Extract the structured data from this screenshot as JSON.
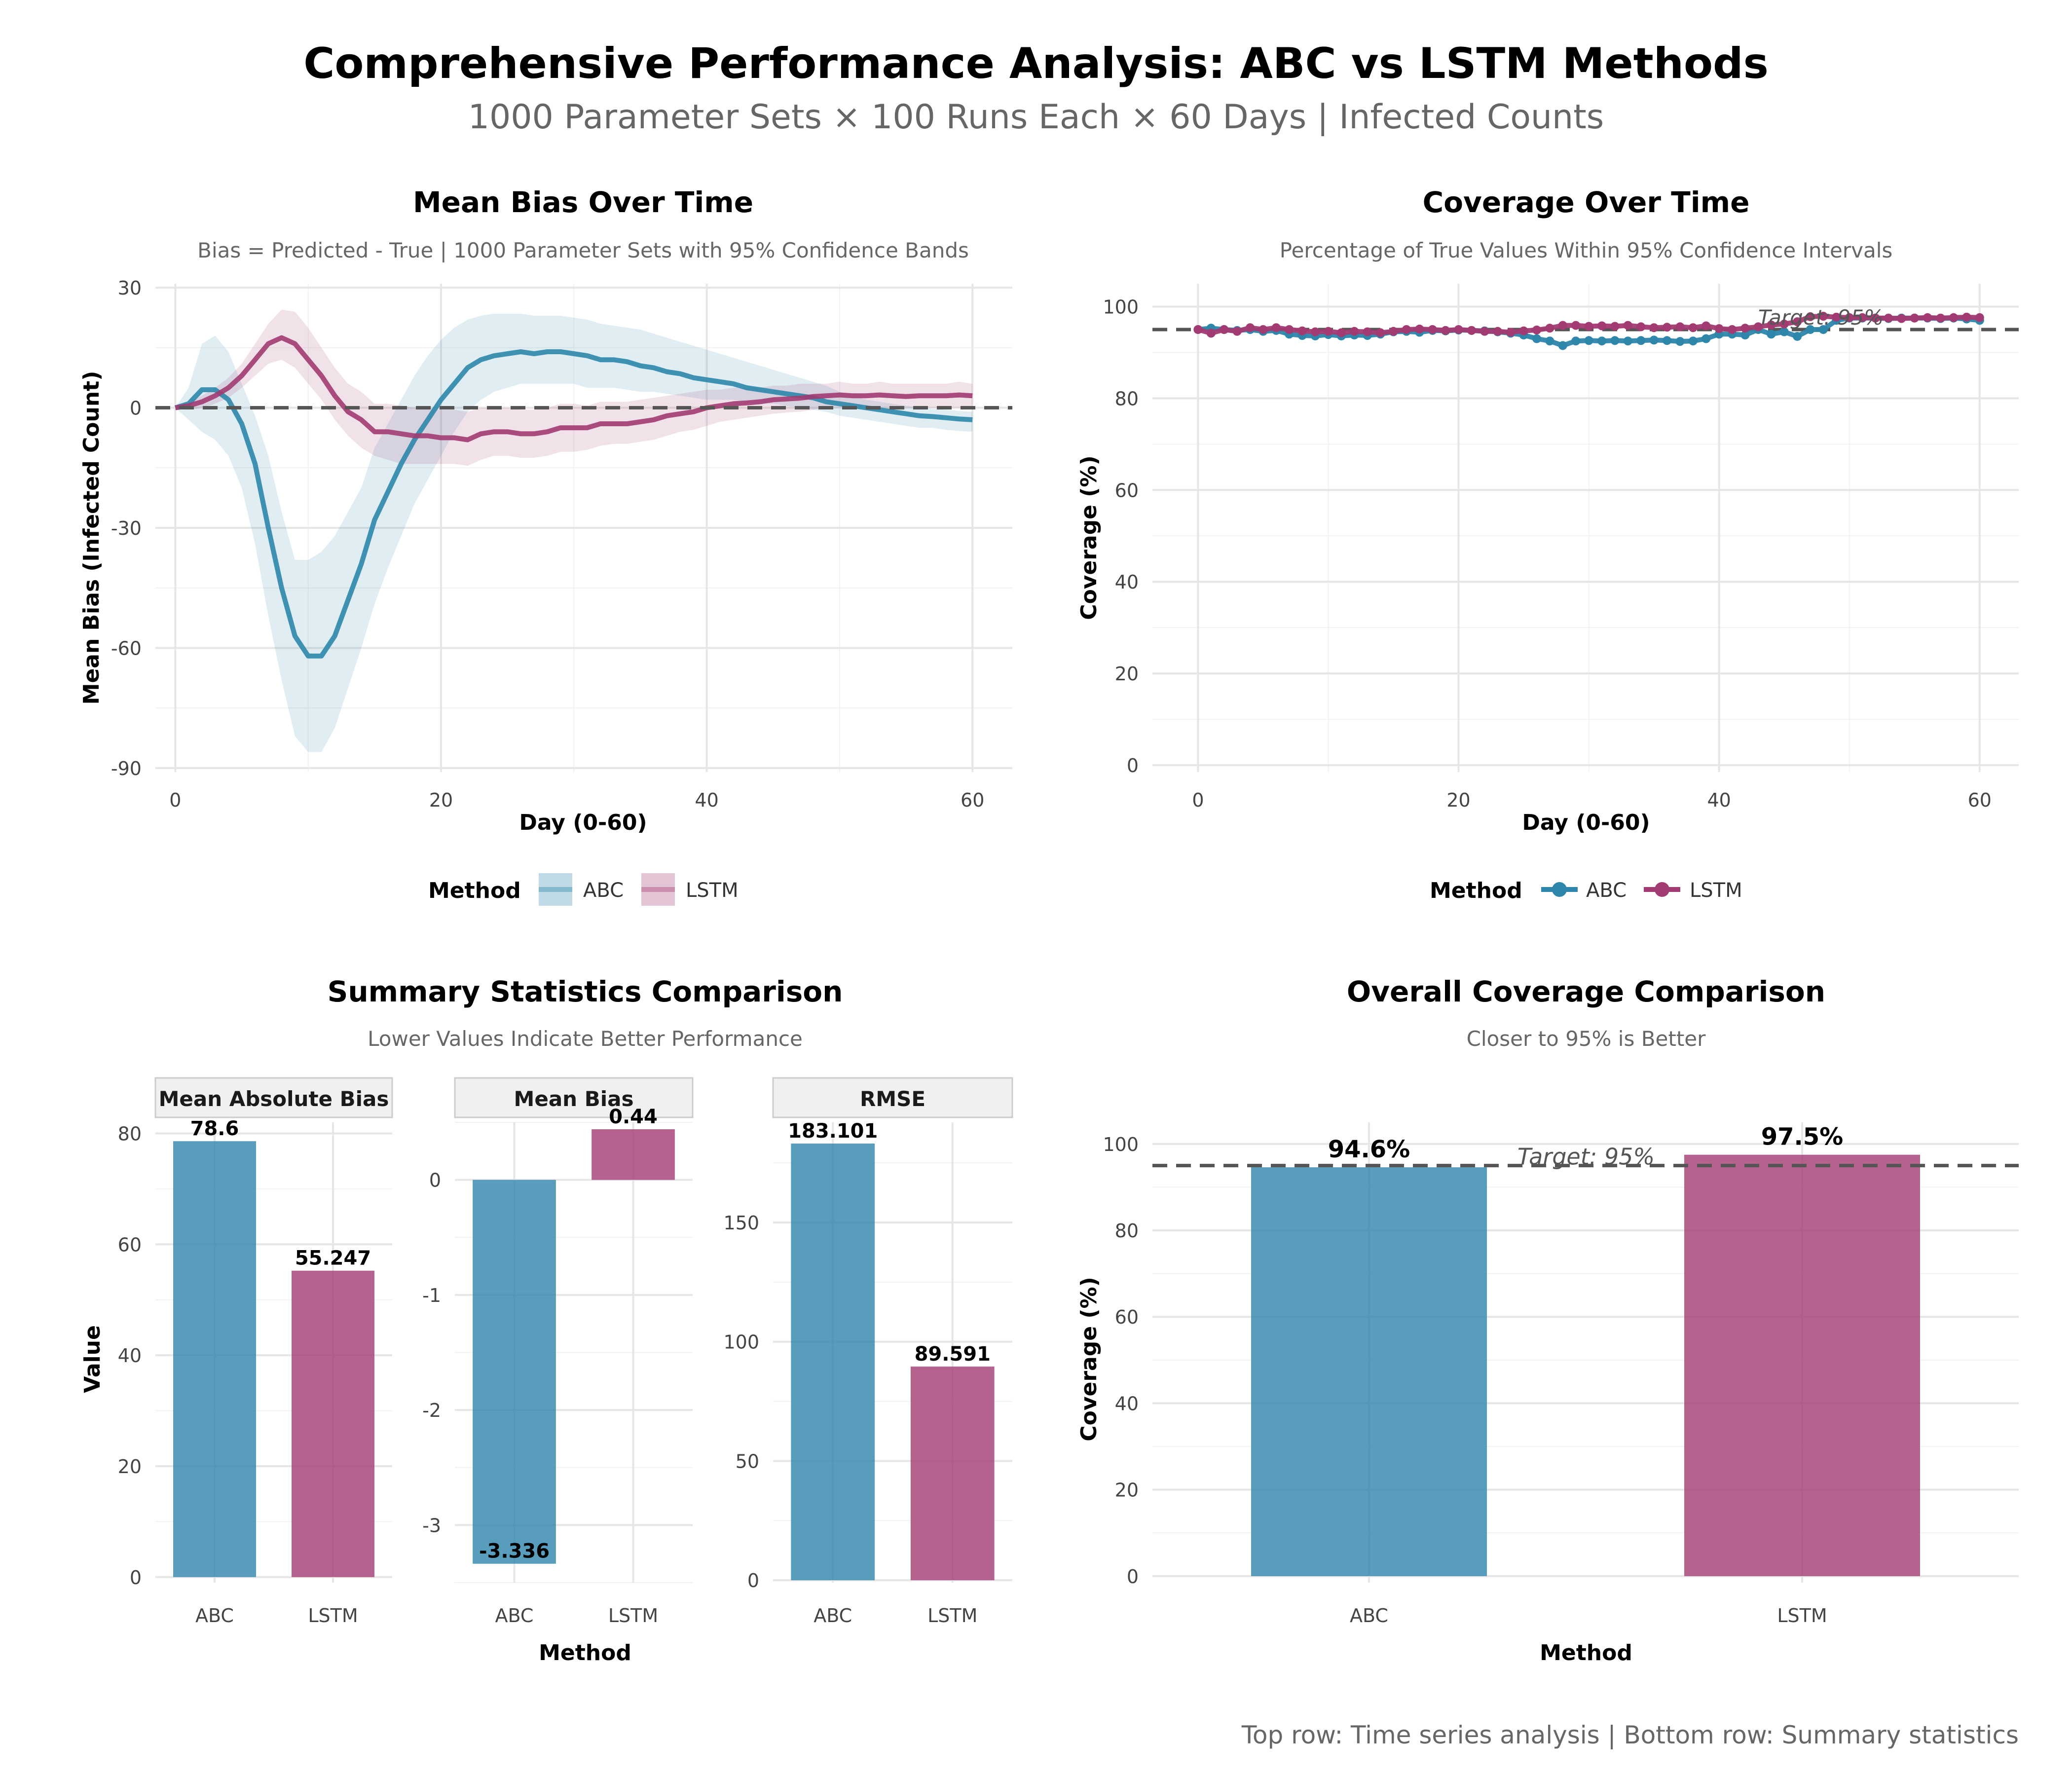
{
  "figure": {
    "title": "Comprehensive Performance Analysis: ABC vs LSTM Methods",
    "subtitle": "1000 Parameter Sets × 100 Runs Each × 60 Days | Infected Counts",
    "caption": "Top row: Time series analysis | Bottom row: Summary statistics"
  },
  "colors": {
    "abc": "#2E86AB",
    "lstm": "#A23B72",
    "reference": "#555555",
    "grid": "#e6e6e6",
    "strip": "#f0f0f0"
  },
  "chart_data": [
    {
      "id": "bias",
      "type": "line",
      "title": "Mean Bias Over Time",
      "subtitle": "Bias = Predicted - True | 1000 Parameter Sets with 95% Confidence Bands",
      "xlabel": "Day (0-60)",
      "ylabel": "Mean Bias (Infected Count)",
      "xlim": [
        -1.5,
        63
      ],
      "ylim": [
        -91,
        31
      ],
      "xticks": [
        0,
        20,
        40,
        60
      ],
      "yticks": [
        -90,
        -60,
        -30,
        0,
        30
      ],
      "xtick_labels": [
        "0",
        "20",
        "40",
        "60"
      ],
      "ytick_labels": [
        "-90",
        "-60",
        "-30",
        "0",
        "30"
      ],
      "reference_line": 0,
      "legend": {
        "title": "Method",
        "position": "bottom",
        "labels": [
          "ABC",
          "LSTM"
        ]
      },
      "x": [
        0,
        1,
        2,
        3,
        4,
        5,
        6,
        7,
        8,
        9,
        10,
        11,
        12,
        13,
        14,
        15,
        16,
        17,
        18,
        19,
        20,
        21,
        22,
        23,
        24,
        25,
        26,
        27,
        28,
        29,
        30,
        31,
        32,
        33,
        34,
        35,
        36,
        37,
        38,
        39,
        40,
        41,
        42,
        43,
        44,
        45,
        46,
        47,
        48,
        49,
        50,
        51,
        52,
        53,
        54,
        55,
        56,
        57,
        58,
        59,
        60
      ],
      "series": [
        {
          "name": "ABC",
          "values": [
            0,
            1,
            4.5,
            4.5,
            2,
            -4,
            -14,
            -30,
            -45,
            -57,
            -62,
            -62,
            -57,
            -48,
            -39,
            -28,
            -21,
            -14,
            -8,
            -3,
            2,
            6,
            10,
            12,
            13,
            13.5,
            14,
            13.5,
            14,
            14,
            13.5,
            13,
            12,
            12,
            11.5,
            10.5,
            10,
            9,
            8.5,
            7.5,
            7,
            6.5,
            6,
            5,
            4.5,
            4,
            3.5,
            3,
            2.5,
            1.5,
            1,
            0.5,
            0,
            -0.5,
            -1,
            -1.5,
            -2,
            -2.2,
            -2.5,
            -2.8,
            -3
          ],
          "lower": [
            0,
            -3,
            -6,
            -8,
            -12,
            -20,
            -34,
            -52,
            -68,
            -82,
            -86,
            -86,
            -80,
            -70,
            -60,
            -49,
            -40,
            -32,
            -24,
            -18,
            -12,
            -6,
            -1,
            2,
            4,
            5,
            6,
            6,
            6,
            6,
            6,
            5,
            5,
            5,
            4.5,
            4,
            4,
            3.5,
            3,
            2.5,
            2,
            2,
            2,
            1.5,
            1,
            1,
            0.5,
            0,
            -0.5,
            -1,
            -2,
            -2.5,
            -3,
            -3.5,
            -4,
            -4.5,
            -5,
            -5,
            -5.5,
            -5.8,
            -6
          ],
          "upper": [
            0,
            5,
            16,
            18,
            14,
            6,
            -2,
            -12,
            -26,
            -38,
            -38,
            -36,
            -32,
            -26,
            -20,
            -10,
            -4,
            2,
            8,
            13,
            17,
            20,
            22,
            23,
            23.5,
            23.5,
            23.5,
            23,
            23,
            23,
            22.5,
            22,
            21,
            20.5,
            20,
            19.5,
            18.5,
            17.5,
            16.5,
            15.5,
            14.5,
            13.5,
            12.5,
            11.5,
            10.5,
            9.5,
            8.5,
            7.5,
            6.5,
            5.5,
            4,
            3,
            2,
            1.5,
            1,
            0.5,
            0,
            -0.3,
            -0.5,
            -0.8,
            -1
          ]
        },
        {
          "name": "LSTM",
          "values": [
            0,
            0.5,
            1.5,
            3,
            5,
            8,
            12,
            16,
            17.5,
            16,
            12,
            8,
            3,
            -1,
            -3,
            -6,
            -6,
            -6.5,
            -7,
            -7,
            -7.5,
            -7.5,
            -8,
            -6.5,
            -6,
            -6,
            -6.5,
            -6.5,
            -6,
            -5,
            -5,
            -5,
            -4,
            -4,
            -4,
            -3.5,
            -3,
            -2,
            -1.5,
            -1,
            0,
            0.5,
            1,
            1.2,
            1.5,
            2,
            2.2,
            2.4,
            2.8,
            3,
            3.2,
            3,
            3,
            3.2,
            3,
            2.8,
            3,
            3,
            3,
            3.2,
            3
          ],
          "lower": [
            0,
            -0.5,
            0,
            1,
            2.5,
            5,
            8,
            11,
            12,
            10,
            6,
            2,
            -3,
            -7,
            -10,
            -12,
            -13,
            -14,
            -14,
            -14,
            -14,
            -14,
            -14.5,
            -13,
            -12,
            -12,
            -12.5,
            -12.5,
            -12,
            -11,
            -11,
            -10.5,
            -9.5,
            -9,
            -9,
            -8.5,
            -8,
            -7,
            -6,
            -5.5,
            -4.5,
            -3.5,
            -3,
            -2.5,
            -2,
            -1.5,
            -1.2,
            -1,
            -0.5,
            0,
            0,
            0,
            0,
            0,
            0,
            0,
            0,
            0,
            0,
            0,
            0
          ],
          "upper": [
            0,
            1.5,
            3,
            5,
            7.5,
            11,
            16,
            21,
            24.5,
            24,
            20,
            15,
            10,
            6,
            4,
            1,
            1,
            0.5,
            0,
            0,
            -0.5,
            -0.5,
            -1,
            0,
            0,
            0,
            -0.5,
            -0.5,
            0,
            1,
            1,
            0.5,
            1.5,
            1.5,
            1.5,
            2,
            2.5,
            3,
            3.5,
            4,
            4.5,
            4.5,
            5,
            5,
            5,
            5.5,
            5.5,
            6,
            6,
            6,
            6.5,
            6,
            6,
            6.5,
            6,
            6,
            6,
            6,
            6,
            6.5,
            6
          ]
        }
      ]
    },
    {
      "id": "coverage",
      "type": "line",
      "title": "Coverage Over Time",
      "subtitle": "Percentage of True Values Within 95% Confidence Intervals",
      "xlabel": "Day (0-60)",
      "ylabel": "Coverage (%)",
      "xlim": [
        -3.5,
        63
      ],
      "ylim": [
        -1.5,
        105
      ],
      "xticks": [
        0,
        20,
        40,
        60
      ],
      "yticks": [
        0,
        20,
        40,
        60,
        80,
        100
      ],
      "xtick_labels": [
        "0",
        "20",
        "40",
        "60"
      ],
      "ytick_labels": [
        "0",
        "20",
        "40",
        "60",
        "80",
        "100"
      ],
      "reference_line": 95,
      "reference_label": "Target: 95%",
      "legend": {
        "title": "Method",
        "position": "bottom",
        "labels": [
          "ABC",
          "LSTM"
        ]
      },
      "x": [
        0,
        1,
        2,
        3,
        4,
        5,
        6,
        7,
        8,
        9,
        10,
        11,
        12,
        13,
        14,
        15,
        16,
        17,
        18,
        19,
        20,
        21,
        22,
        23,
        24,
        25,
        26,
        27,
        28,
        29,
        30,
        31,
        32,
        33,
        34,
        35,
        36,
        37,
        38,
        39,
        40,
        41,
        42,
        43,
        44,
        45,
        46,
        47,
        48,
        49,
        50,
        51,
        52,
        53,
        54,
        55,
        56,
        57,
        58,
        59,
        60
      ],
      "series": [
        {
          "name": "ABC",
          "values": [
            95,
            95.3,
            95,
            94.8,
            95,
            94.6,
            94.8,
            94,
            93.7,
            93.6,
            93.9,
            93.6,
            93.8,
            93.7,
            94,
            94.5,
            94.6,
            94.4,
            94.8,
            94.7,
            94.9,
            94.8,
            94.7,
            94.5,
            94.2,
            93.8,
            93,
            92.5,
            91.5,
            92.5,
            92.6,
            92.5,
            92.6,
            92.5,
            92.6,
            92.7,
            92.6,
            92.4,
            92.5,
            93,
            94,
            94,
            93.8,
            95,
            94,
            94.5,
            93.5,
            95,
            95,
            97,
            97.5,
            97.5,
            97.5,
            97.4,
            97.5,
            97.5,
            97.5,
            97.4,
            97.5,
            97.3,
            97
          ]
        },
        {
          "name": "LSTM",
          "values": [
            95,
            94.2,
            95,
            94.6,
            95.4,
            95,
            95.4,
            95,
            94.7,
            94.5,
            94.6,
            94.3,
            94.6,
            94.5,
            94.3,
            94.6,
            95,
            95.1,
            95,
            94.8,
            95,
            94.8,
            94.6,
            94.6,
            94.4,
            94.7,
            94.9,
            95.3,
            95.9,
            95.9,
            95.7,
            95.8,
            95.7,
            95.9,
            95.6,
            95.4,
            95.5,
            95.6,
            95.4,
            95.8,
            95.2,
            95,
            95.3,
            95.6,
            96,
            96.2,
            96.7,
            97.8,
            97.9,
            97.7,
            97.6,
            97.6,
            97.5,
            97.5,
            97.4,
            97.5,
            97.6,
            97.5,
            97.6,
            97.7,
            97.6
          ]
        }
      ]
    },
    {
      "id": "summary",
      "type": "bar",
      "title": "Summary Statistics Comparison",
      "subtitle": "Lower Values Indicate Better Performance",
      "xlabel": "Method",
      "ylabel": "Value",
      "categories": [
        "ABC",
        "LSTM"
      ],
      "facets": [
        {
          "name": "Mean Absolute Bias",
          "values": [
            78.6,
            55.247
          ],
          "labels": [
            "78.6",
            "55.247"
          ],
          "ylim": [
            -1,
            82
          ],
          "yticks": [
            0,
            20,
            40,
            60,
            80
          ],
          "ytick_labels": [
            "0",
            "20",
            "40",
            "60",
            "80"
          ]
        },
        {
          "name": "Mean Bias",
          "values": [
            -3.336,
            0.44
          ],
          "labels": [
            "-3.336",
            "0.44"
          ],
          "ylim": [
            -3.5,
            0.5
          ],
          "yticks": [
            -3,
            -2,
            -1,
            0
          ],
          "ytick_labels": [
            "-3",
            "-2",
            "-1",
            "0"
          ]
        },
        {
          "name": "RMSE",
          "values": [
            183.101,
            89.591
          ],
          "labels": [
            "183.101",
            "89.591"
          ],
          "ylim": [
            -1,
            192
          ],
          "yticks": [
            0,
            50,
            100,
            150
          ],
          "ytick_labels": [
            "0",
            "50",
            "100",
            "150"
          ]
        }
      ]
    },
    {
      "id": "overall",
      "type": "bar",
      "title": "Overall Coverage Comparison",
      "subtitle": "Closer to 95% is Better",
      "xlabel": "Method",
      "ylabel": "Coverage (%)",
      "categories": [
        "ABC",
        "LSTM"
      ],
      "values": [
        94.6,
        97.5
      ],
      "labels": [
        "94.6%",
        "97.5%"
      ],
      "ylim": [
        -1.5,
        105
      ],
      "yticks": [
        0,
        20,
        40,
        60,
        80,
        100
      ],
      "ytick_labels": [
        "0",
        "20",
        "40",
        "60",
        "80",
        "100"
      ],
      "reference_line": 95,
      "reference_label": "Target: 95%"
    }
  ]
}
